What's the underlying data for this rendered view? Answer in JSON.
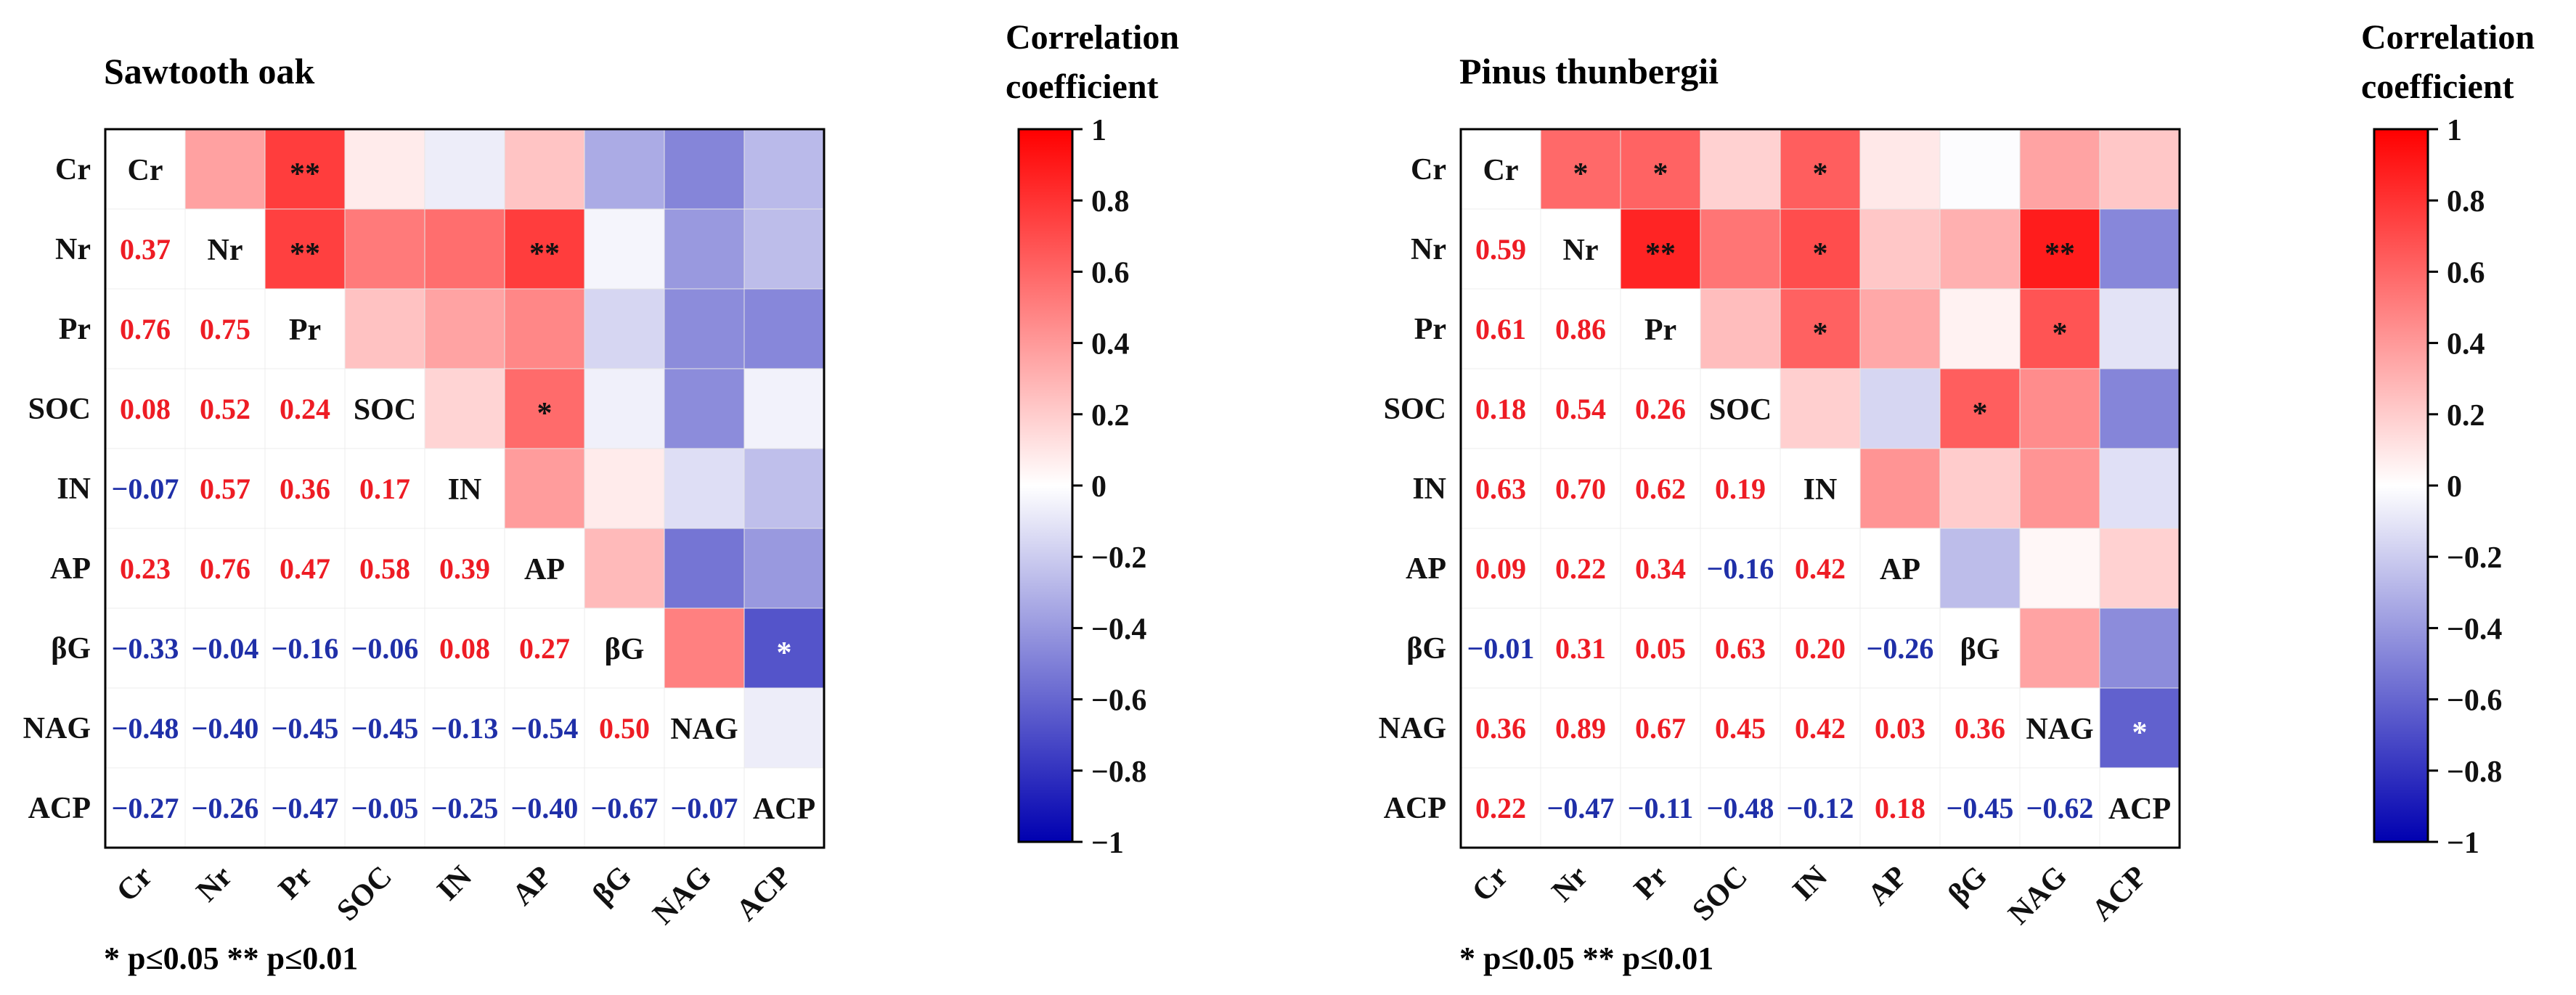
{
  "panels": [
    {
      "title": "Sawtooth oak",
      "significance_note": "* p≤0.05  ** p≤0.01",
      "colorbar": {
        "title_line1": "Correlation",
        "title_line2": "coefficient",
        "ticks": [
          "1",
          "0.8",
          "0.6",
          "0.4",
          "0.2",
          "0",
          "−0.2",
          "−0.4",
          "−0.6",
          "−0.8",
          "−1"
        ]
      }
    },
    {
      "title": "Pinus thunbergii",
      "significance_note": "* p≤0.05  ** p≤0.01",
      "colorbar": {
        "title_line1": "Correlation",
        "title_line2": "coefficient",
        "ticks": [
          "1",
          "0.8",
          "0.6",
          "0.4",
          "0.2",
          "0",
          "−0.2",
          "−0.4",
          "−0.6",
          "−0.8",
          "−1"
        ]
      }
    }
  ],
  "colors": {
    "positive_text": "#ee1c24",
    "negative_text": "#1f2fa8",
    "diagonal_text": "#111111",
    "scale_max": "#ff0000",
    "scale_mid": "#ffffff",
    "scale_min": "#0000b0"
  },
  "chart_data": [
    {
      "type": "heatmap",
      "title": "Sawtooth oak",
      "variables": [
        "Cr",
        "Nr",
        "Pr",
        "SOC",
        "IN",
        "AP",
        "βG",
        "NAG",
        "ACP"
      ],
      "value_range": [
        -1,
        1
      ],
      "lower_triangle_labels": [
        [],
        [
          "0.37"
        ],
        [
          "0.76",
          "0.75"
        ],
        [
          "0.08",
          "0.52",
          "0.24"
        ],
        [
          "−0.07",
          "0.57",
          "0.36",
          "0.17"
        ],
        [
          "0.23",
          "0.76",
          "0.47",
          "0.58",
          "0.39"
        ],
        [
          "−0.33",
          "−0.04",
          "−0.16",
          "−0.06",
          "0.08",
          "0.27"
        ],
        [
          "−0.48",
          "−0.40",
          "−0.45",
          "−0.45",
          "−0.13",
          "−0.54",
          "0.50"
        ],
        [
          "−0.27",
          "−0.26",
          "−0.47",
          "−0.05",
          "−0.25",
          "−0.40",
          "−0.67",
          "−0.07"
        ]
      ],
      "significance_marks": [
        {
          "row": "Cr",
          "col": "Pr",
          "mark": "**"
        },
        {
          "row": "Nr",
          "col": "Pr",
          "mark": "**"
        },
        {
          "row": "Nr",
          "col": "AP",
          "mark": "**"
        },
        {
          "row": "SOC",
          "col": "AP",
          "mark": "*"
        },
        {
          "row": "βG",
          "col": "ACP",
          "mark": "*"
        }
      ]
    },
    {
      "type": "heatmap",
      "title": "Pinus thunbergii",
      "variables": [
        "Cr",
        "Nr",
        "Pr",
        "SOC",
        "IN",
        "AP",
        "βG",
        "NAG",
        "ACP"
      ],
      "value_range": [
        -1,
        1
      ],
      "lower_triangle_labels": [
        [],
        [
          "0.59"
        ],
        [
          "0.61",
          "0.86"
        ],
        [
          "0.18",
          "0.54",
          "0.26"
        ],
        [
          "0.63",
          "0.70",
          "0.62",
          "0.19"
        ],
        [
          "0.09",
          "0.22",
          "0.34",
          "−0.16",
          "0.42"
        ],
        [
          "−0.01",
          "0.31",
          "0.05",
          "0.63",
          "0.20",
          "−0.26"
        ],
        [
          "0.36",
          "0.89",
          "0.67",
          "0.45",
          "0.42",
          "0.03",
          "0.36"
        ],
        [
          "0.22",
          "−0.47",
          "−0.11",
          "−0.48",
          "−0.12",
          "0.18",
          "−0.45",
          "−0.62"
        ]
      ],
      "significance_marks": [
        {
          "row": "Cr",
          "col": "Nr",
          "mark": "*"
        },
        {
          "row": "Cr",
          "col": "Pr",
          "mark": "*"
        },
        {
          "row": "Cr",
          "col": "IN",
          "mark": "*"
        },
        {
          "row": "Nr",
          "col": "Pr",
          "mark": "**"
        },
        {
          "row": "Nr",
          "col": "IN",
          "mark": "*"
        },
        {
          "row": "Nr",
          "col": "NAG",
          "mark": "**"
        },
        {
          "row": "Pr",
          "col": "IN",
          "mark": "*"
        },
        {
          "row": "Pr",
          "col": "NAG",
          "mark": "*"
        },
        {
          "row": "SOC",
          "col": "βG",
          "mark": "*"
        },
        {
          "row": "NAG",
          "col": "ACP",
          "mark": "*"
        }
      ]
    }
  ]
}
